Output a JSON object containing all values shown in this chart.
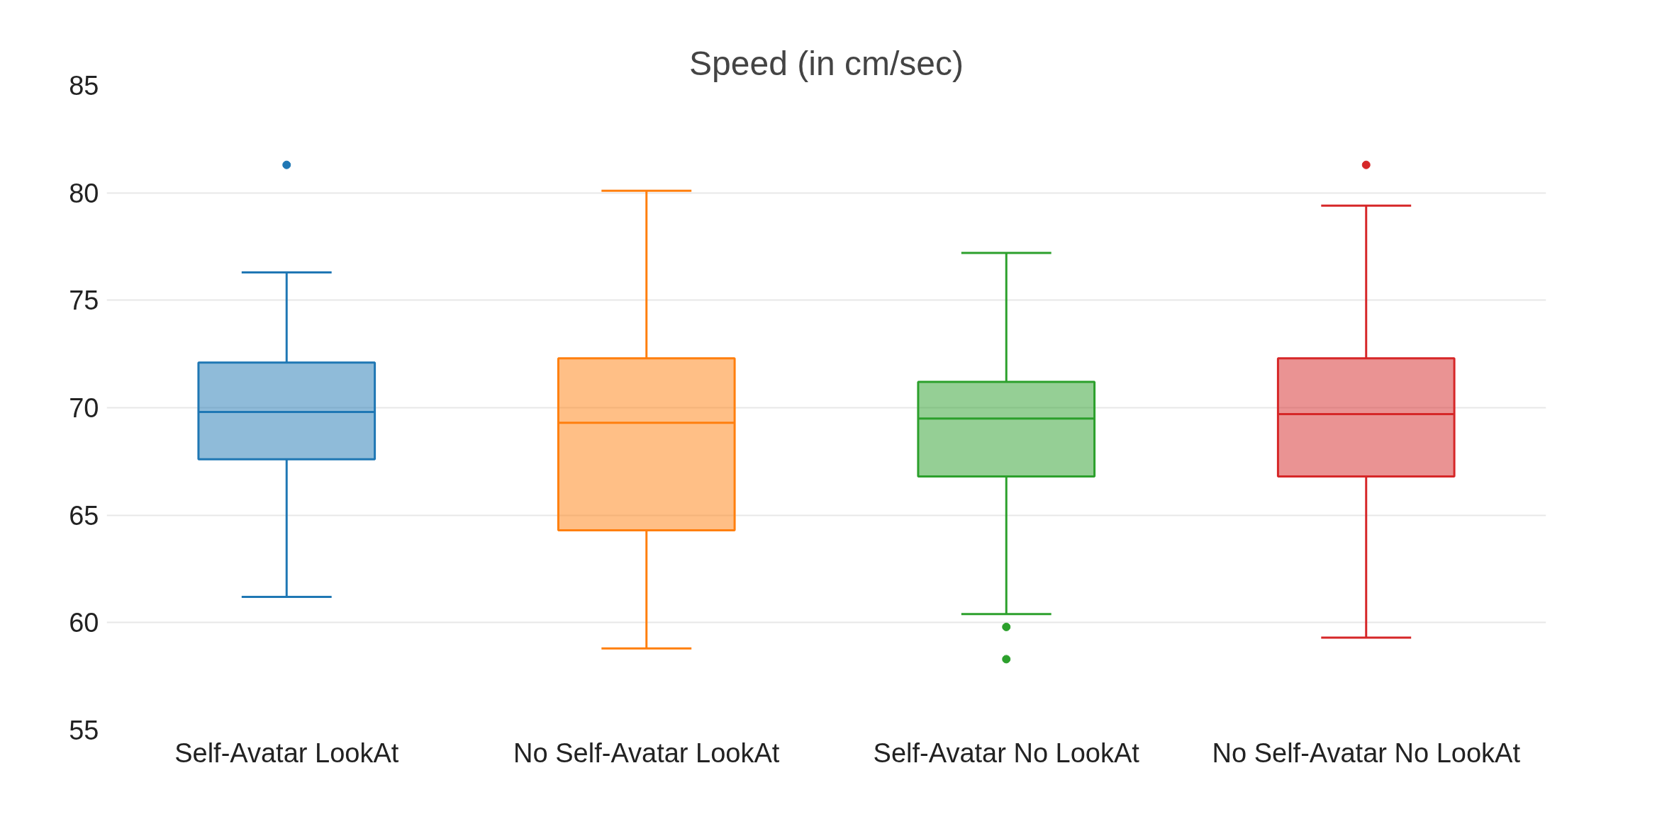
{
  "chart_data": {
    "type": "box",
    "title": "Speed (in cm/sec)",
    "categories": [
      "Self-Avatar LookAt",
      "No Self-Avatar LookAt",
      "Self-Avatar No LookAt",
      "No Self-Avatar No LookAt"
    ],
    "colors": [
      "#1f77b4",
      "#ff7f0e",
      "#2ca02c",
      "#d62728"
    ],
    "boxes": [
      {
        "low": 61.2,
        "q1": 67.6,
        "median": 69.8,
        "q3": 72.1,
        "high": 76.3,
        "outliers": [
          81.3
        ]
      },
      {
        "low": 58.8,
        "q1": 64.3,
        "median": 69.3,
        "q3": 72.3,
        "high": 80.1
      },
      {
        "low": 60.4,
        "q1": 66.8,
        "median": 69.5,
        "q3": 71.2,
        "high": 77.2,
        "outliers": [
          59.8,
          58.3
        ]
      },
      {
        "low": 59.3,
        "q1": 66.8,
        "median": 69.7,
        "q3": 72.3,
        "high": 79.4,
        "outliers": [
          81.3
        ]
      }
    ],
    "ylim": [
      55,
      85
    ],
    "yticks": [
      55,
      60,
      65,
      70,
      75,
      80,
      85
    ],
    "grid": "y"
  }
}
